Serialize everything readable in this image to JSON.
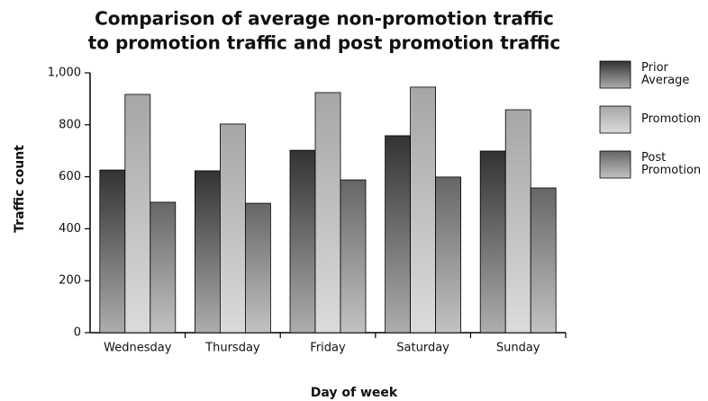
{
  "chart_data": {
    "type": "bar",
    "title": "Comparison of average non-promotion traffic",
    "subtitle": "to promotion traffic and post promotion traffic",
    "xlabel": "Day of week",
    "ylabel": "Traffic count",
    "categories": [
      "Wednesday",
      "Thursday",
      "Friday",
      "Saturday",
      "Sunday"
    ],
    "series": [
      {
        "name": "Prior Average",
        "color": "#333333",
        "values": [
          626,
          623,
          702,
          758,
          699
        ]
      },
      {
        "name": "Promotion",
        "color": "#a6a6a6",
        "values": [
          917,
          803,
          924,
          945,
          858
        ]
      },
      {
        "name": "Post Promotion",
        "color": "#666666",
        "values": [
          502,
          498,
          588,
          599,
          557
        ]
      }
    ],
    "ylim": [
      0,
      1000
    ],
    "yticks": [
      0,
      200,
      400,
      600,
      800,
      {
        "value": 1000,
        "label": "1,000"
      }
    ],
    "legend": "right"
  }
}
